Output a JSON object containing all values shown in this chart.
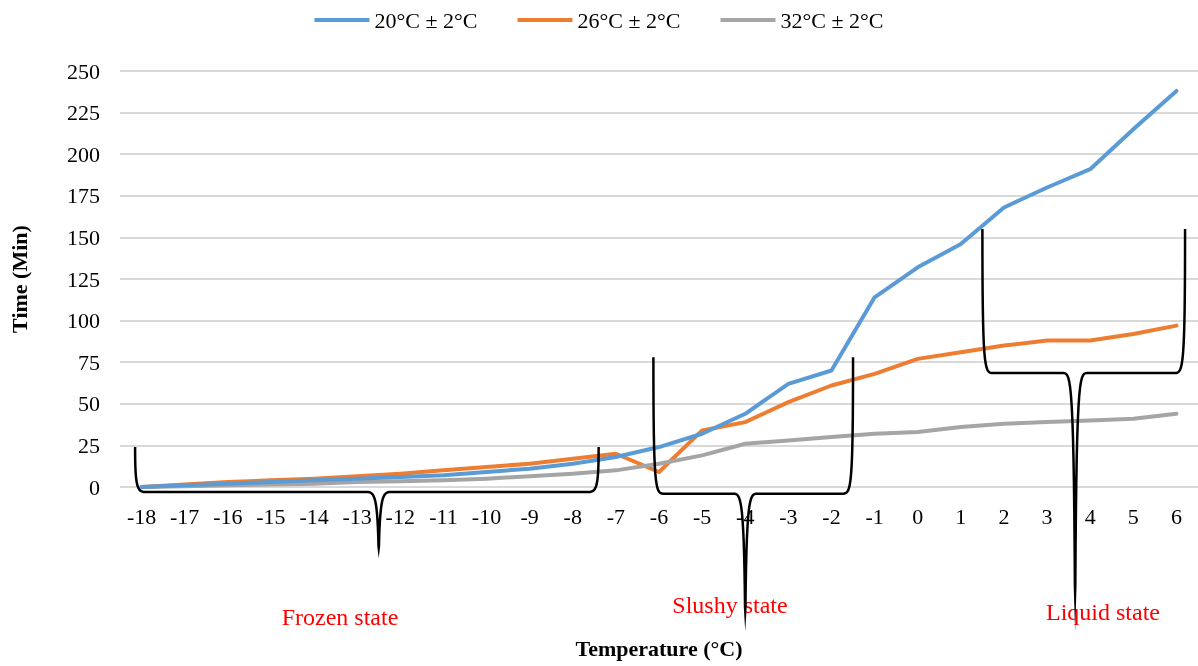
{
  "chart_data": {
    "type": "line",
    "xlabel": "Temperature (°C)",
    "ylabel": "Time (Min)",
    "categories": [
      "-18",
      "-17",
      "-16",
      "-15",
      "-14",
      "-13",
      "-12",
      "-11",
      "-10",
      "-9",
      "-8",
      "-7",
      "-6",
      "-5",
      "-4",
      "-3",
      "-2",
      "-1",
      "0",
      "1",
      "2",
      "3",
      "4",
      "5",
      "6"
    ],
    "series": [
      {
        "name": "20°C ± 2°C",
        "color": "#5b9bd5",
        "values": [
          0,
          1,
          2,
          3,
          4,
          5,
          6,
          7,
          9,
          11,
          14,
          18,
          24,
          32,
          44,
          62,
          70,
          114,
          132,
          146,
          168,
          180,
          191,
          215,
          238
        ]
      },
      {
        "name": "26°C ± 2°C",
        "color": "#ed7d31",
        "values": [
          0,
          1.5,
          3,
          4,
          5,
          6.5,
          8,
          10,
          12,
          14,
          17,
          20,
          9,
          34,
          39,
          51,
          61,
          68,
          77,
          81,
          85,
          88,
          88,
          92,
          97
        ]
      },
      {
        "name": "32°C ± 2°C",
        "color": "#a5a5a5",
        "values": [
          0,
          0.5,
          1,
          1.5,
          2,
          3,
          3.5,
          4,
          5,
          6.5,
          8,
          10,
          14,
          19,
          26,
          28,
          30,
          32,
          33,
          36,
          38,
          39,
          40,
          41,
          44
        ]
      }
    ],
    "ylim": [
      0,
      250
    ],
    "yticks": [
      0,
      25,
      50,
      75,
      100,
      125,
      150,
      175,
      200,
      225,
      250
    ],
    "grid": "y",
    "legend": "top",
    "marker": "none",
    "line_style": "solid",
    "annotations": [
      "Frozen state",
      "Slushy state",
      "Liquid state"
    ]
  }
}
